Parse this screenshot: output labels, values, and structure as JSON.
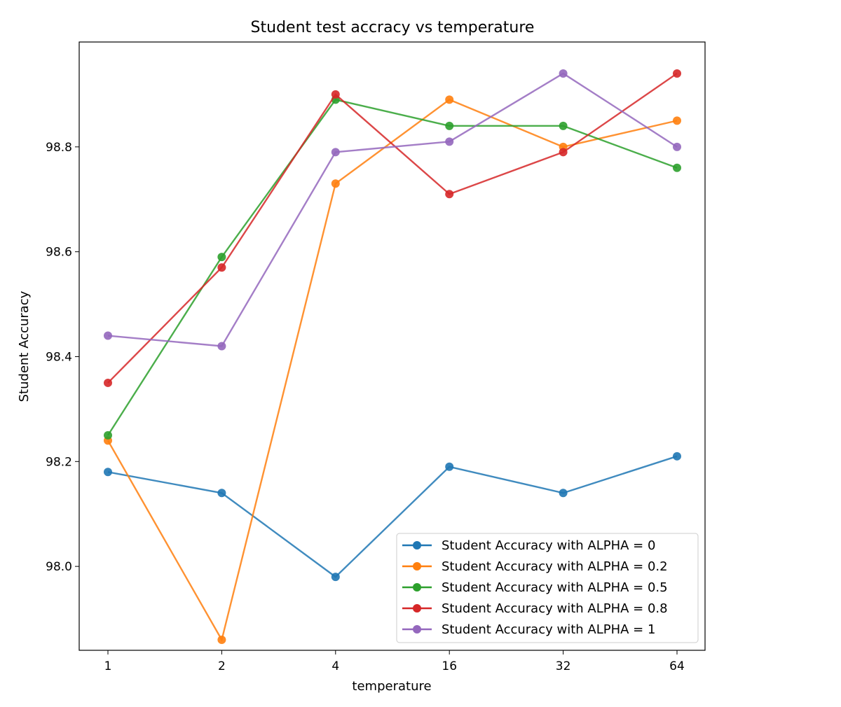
{
  "chart_data": {
    "type": "line",
    "title": "Student test accracy vs temperature",
    "xlabel": "temperature",
    "ylabel": "Student Accuracy",
    "categories": [
      "1",
      "2",
      "4",
      "16",
      "32",
      "64"
    ],
    "yticks": [
      "98.0",
      "98.2",
      "98.4",
      "98.6",
      "98.8"
    ],
    "ylim": [
      97.84,
      99.0
    ],
    "grid": false,
    "legend_position": "bottom-right",
    "series": [
      {
        "name": "Student Accuracy with ALPHA = 0",
        "color": "#1f77b4",
        "values": [
          98.18,
          98.14,
          97.98,
          98.19,
          98.14,
          98.21
        ]
      },
      {
        "name": "Student Accuracy with ALPHA = 0.2",
        "color": "#ff7f0e",
        "values": [
          98.24,
          97.86,
          98.73,
          98.89,
          98.8,
          98.85
        ]
      },
      {
        "name": "Student Accuracy with ALPHA = 0.5",
        "color": "#2ca02c",
        "values": [
          98.25,
          98.59,
          98.89,
          98.84,
          98.84,
          98.76
        ]
      },
      {
        "name": "Student Accuracy with ALPHA = 0.8",
        "color": "#d62728",
        "values": [
          98.35,
          98.57,
          98.9,
          98.71,
          98.79,
          98.94
        ]
      },
      {
        "name": "Student Accuracy with ALPHA = 1",
        "color": "#9467bd",
        "values": [
          98.44,
          98.42,
          98.79,
          98.81,
          98.94,
          98.8
        ]
      }
    ]
  }
}
